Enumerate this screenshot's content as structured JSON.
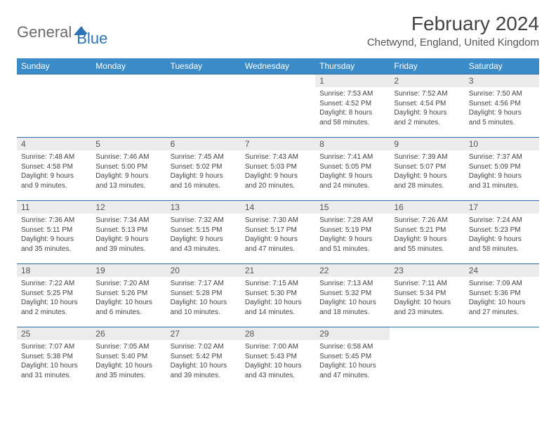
{
  "logo": {
    "word1": "General",
    "word2": "Blue",
    "color1": "#6b6b6b",
    "color2": "#2e75b6"
  },
  "title": "February 2024",
  "location": "Chetwynd, England, United Kingdom",
  "colors": {
    "header_bg": "#3b8bc8",
    "header_text": "#ffffff",
    "row_border": "#2e6da4",
    "daynum_bg": "#ececec",
    "text": "#444444"
  },
  "day_headers": [
    "Sunday",
    "Monday",
    "Tuesday",
    "Wednesday",
    "Thursday",
    "Friday",
    "Saturday"
  ],
  "weeks": [
    [
      null,
      null,
      null,
      null,
      {
        "n": "1",
        "sr": "7:53 AM",
        "ss": "4:52 PM",
        "dl": "8 hours and 58 minutes."
      },
      {
        "n": "2",
        "sr": "7:52 AM",
        "ss": "4:54 PM",
        "dl": "9 hours and 2 minutes."
      },
      {
        "n": "3",
        "sr": "7:50 AM",
        "ss": "4:56 PM",
        "dl": "9 hours and 5 minutes."
      }
    ],
    [
      {
        "n": "4",
        "sr": "7:48 AM",
        "ss": "4:58 PM",
        "dl": "9 hours and 9 minutes."
      },
      {
        "n": "5",
        "sr": "7:46 AM",
        "ss": "5:00 PM",
        "dl": "9 hours and 13 minutes."
      },
      {
        "n": "6",
        "sr": "7:45 AM",
        "ss": "5:02 PM",
        "dl": "9 hours and 16 minutes."
      },
      {
        "n": "7",
        "sr": "7:43 AM",
        "ss": "5:03 PM",
        "dl": "9 hours and 20 minutes."
      },
      {
        "n": "8",
        "sr": "7:41 AM",
        "ss": "5:05 PM",
        "dl": "9 hours and 24 minutes."
      },
      {
        "n": "9",
        "sr": "7:39 AM",
        "ss": "5:07 PM",
        "dl": "9 hours and 28 minutes."
      },
      {
        "n": "10",
        "sr": "7:37 AM",
        "ss": "5:09 PM",
        "dl": "9 hours and 31 minutes."
      }
    ],
    [
      {
        "n": "11",
        "sr": "7:36 AM",
        "ss": "5:11 PM",
        "dl": "9 hours and 35 minutes."
      },
      {
        "n": "12",
        "sr": "7:34 AM",
        "ss": "5:13 PM",
        "dl": "9 hours and 39 minutes."
      },
      {
        "n": "13",
        "sr": "7:32 AM",
        "ss": "5:15 PM",
        "dl": "9 hours and 43 minutes."
      },
      {
        "n": "14",
        "sr": "7:30 AM",
        "ss": "5:17 PM",
        "dl": "9 hours and 47 minutes."
      },
      {
        "n": "15",
        "sr": "7:28 AM",
        "ss": "5:19 PM",
        "dl": "9 hours and 51 minutes."
      },
      {
        "n": "16",
        "sr": "7:26 AM",
        "ss": "5:21 PM",
        "dl": "9 hours and 55 minutes."
      },
      {
        "n": "17",
        "sr": "7:24 AM",
        "ss": "5:23 PM",
        "dl": "9 hours and 58 minutes."
      }
    ],
    [
      {
        "n": "18",
        "sr": "7:22 AM",
        "ss": "5:25 PM",
        "dl": "10 hours and 2 minutes."
      },
      {
        "n": "19",
        "sr": "7:20 AM",
        "ss": "5:26 PM",
        "dl": "10 hours and 6 minutes."
      },
      {
        "n": "20",
        "sr": "7:17 AM",
        "ss": "5:28 PM",
        "dl": "10 hours and 10 minutes."
      },
      {
        "n": "21",
        "sr": "7:15 AM",
        "ss": "5:30 PM",
        "dl": "10 hours and 14 minutes."
      },
      {
        "n": "22",
        "sr": "7:13 AM",
        "ss": "5:32 PM",
        "dl": "10 hours and 18 minutes."
      },
      {
        "n": "23",
        "sr": "7:11 AM",
        "ss": "5:34 PM",
        "dl": "10 hours and 23 minutes."
      },
      {
        "n": "24",
        "sr": "7:09 AM",
        "ss": "5:36 PM",
        "dl": "10 hours and 27 minutes."
      }
    ],
    [
      {
        "n": "25",
        "sr": "7:07 AM",
        "ss": "5:38 PM",
        "dl": "10 hours and 31 minutes."
      },
      {
        "n": "26",
        "sr": "7:05 AM",
        "ss": "5:40 PM",
        "dl": "10 hours and 35 minutes."
      },
      {
        "n": "27",
        "sr": "7:02 AM",
        "ss": "5:42 PM",
        "dl": "10 hours and 39 minutes."
      },
      {
        "n": "28",
        "sr": "7:00 AM",
        "ss": "5:43 PM",
        "dl": "10 hours and 43 minutes."
      },
      {
        "n": "29",
        "sr": "6:58 AM",
        "ss": "5:45 PM",
        "dl": "10 hours and 47 minutes."
      },
      null,
      null
    ]
  ],
  "labels": {
    "sunrise": "Sunrise:",
    "sunset": "Sunset:",
    "daylight": "Daylight:"
  }
}
